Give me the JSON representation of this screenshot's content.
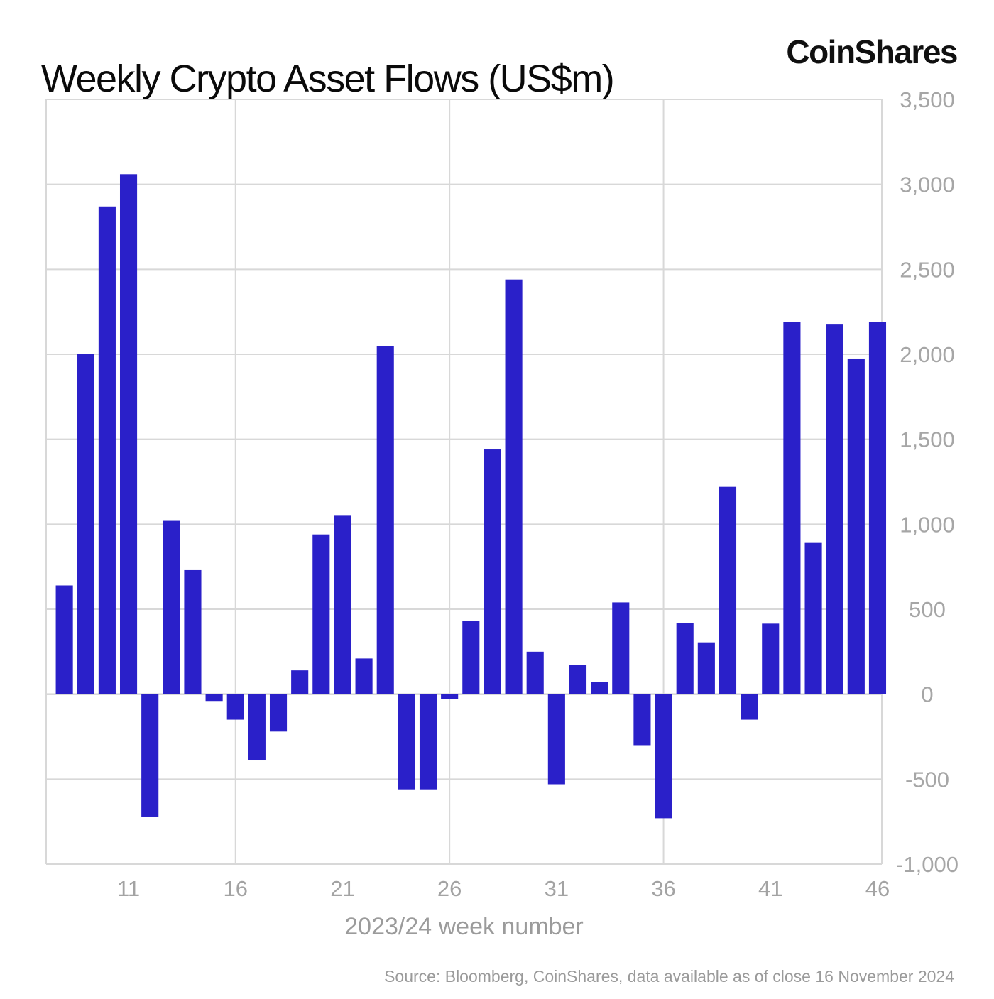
{
  "brand": {
    "logo_text": "CoinShares"
  },
  "footer": {
    "source": "Source: Bloomberg, CoinShares, data available as of close 16 November 2024"
  },
  "chart_data": {
    "type": "bar",
    "title": "Weekly Crypto Asset Flows (US$m)",
    "xlabel": "2023/24 week number",
    "ylabel": "",
    "ylim": [
      -1000,
      3500
    ],
    "ytick_step": 500,
    "xticks": [
      11,
      16,
      21,
      26,
      31,
      36,
      41,
      46
    ],
    "grid_weeks": [
      16,
      26,
      36
    ],
    "grid": "on",
    "legend_position": "none",
    "bar_color": "#2a20c9",
    "gridline_color": "#d8d8d8",
    "axis_label_color": "#a6a6a6",
    "x": [
      8,
      9,
      10,
      11,
      12,
      13,
      14,
      15,
      16,
      17,
      18,
      19,
      20,
      21,
      22,
      23,
      24,
      25,
      26,
      27,
      28,
      29,
      30,
      31,
      32,
      33,
      34,
      35,
      36,
      37,
      38,
      39,
      40,
      41,
      42,
      43,
      44,
      45,
      46
    ],
    "values": [
      640,
      2000,
      2870,
      3060,
      -720,
      1020,
      730,
      -40,
      -150,
      -390,
      -220,
      140,
      940,
      1050,
      210,
      2050,
      -560,
      -560,
      -30,
      430,
      1440,
      2440,
      250,
      -530,
      170,
      70,
      540,
      -300,
      -730,
      420,
      305,
      1220,
      -150,
      415,
      2190,
      890,
      2175,
      1975,
      2190
    ]
  }
}
